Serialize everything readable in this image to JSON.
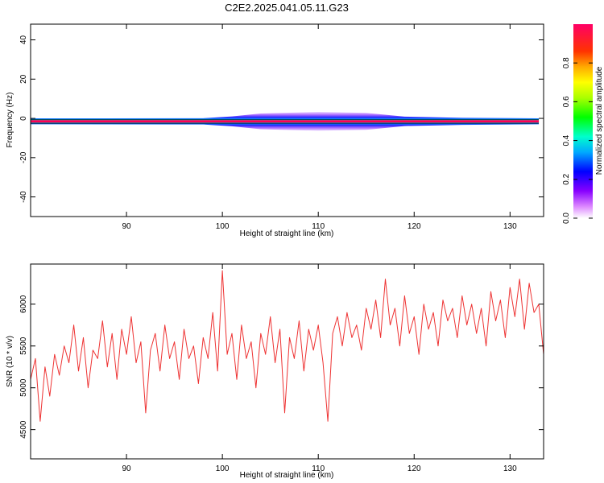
{
  "title": "C2E2.2025.041.05.11.G23",
  "colorbar": {
    "label": "Normalized spectral amplitude",
    "ticks": [
      "0.0",
      "0.2",
      "0.4",
      "0.6",
      "0.8"
    ],
    "tick_values": [
      0.0,
      0.2,
      0.4,
      0.6,
      0.8
    ],
    "range": [
      0,
      1
    ]
  },
  "chart_data": [
    {
      "type": "heatmap",
      "xlabel": "Height of straight line (km)",
      "ylabel": "Frequency (Hz)",
      "xlim": [
        80.0,
        133.5
      ],
      "ylim": [
        -50,
        48
      ],
      "xticks": [
        "90",
        "100",
        "110",
        "120",
        "130"
      ],
      "xtick_values": [
        90,
        100,
        110,
        120,
        130
      ],
      "yticks": [
        "40",
        "20",
        "0",
        "-20",
        "-40"
      ],
      "ytick_values": [
        40,
        20,
        0,
        -20,
        -40
      ],
      "band_center_hz": -1.5,
      "band_profile": [
        {
          "x": 80.0,
          "halfwidth": 1.5
        },
        {
          "x": 98.0,
          "halfwidth": 1.6
        },
        {
          "x": 101.0,
          "halfwidth": 2.5
        },
        {
          "x": 104.0,
          "halfwidth": 4.0
        },
        {
          "x": 110.0,
          "halfwidth": 4.8
        },
        {
          "x": 115.0,
          "halfwidth": 4.3
        },
        {
          "x": 119.0,
          "halfwidth": 2.4
        },
        {
          "x": 125.0,
          "halfwidth": 1.8
        },
        {
          "x": 133.0,
          "halfwidth": 1.5
        }
      ]
    },
    {
      "type": "line",
      "xlabel": "Height of straight line (km)",
      "ylabel": "SNR (10 * v/v)",
      "xlim": [
        80.0,
        133.5
      ],
      "ylim": [
        4150,
        6480
      ],
      "xticks": [
        "90",
        "100",
        "110",
        "120",
        "130"
      ],
      "xtick_values": [
        90,
        100,
        110,
        120,
        130
      ],
      "yticks": [
        "4500",
        "5000",
        "5500",
        "6000"
      ],
      "ytick_values": [
        4500,
        5000,
        5500,
        6000
      ],
      "series": [
        {
          "color": "#ee3333",
          "x": [
            80.0,
            80.5,
            81.0,
            81.5,
            82.0,
            82.5,
            83.0,
            83.5,
            84.0,
            84.5,
            85.0,
            85.5,
            86.0,
            86.5,
            87.0,
            87.5,
            88.0,
            88.5,
            89.0,
            89.5,
            90.0,
            90.5,
            91.0,
            91.5,
            92.0,
            92.5,
            93.0,
            93.5,
            94.0,
            94.5,
            95.0,
            95.5,
            96.0,
            96.5,
            97.0,
            97.5,
            98.0,
            98.5,
            99.0,
            99.5,
            100.0,
            100.5,
            101.0,
            101.5,
            102.0,
            102.5,
            103.0,
            103.5,
            104.0,
            104.5,
            105.0,
            105.5,
            106.0,
            106.5,
            107.0,
            107.5,
            108.0,
            108.5,
            109.0,
            109.5,
            110.0,
            110.5,
            111.0,
            111.5,
            112.0,
            112.5,
            113.0,
            113.5,
            114.0,
            114.5,
            115.0,
            115.5,
            116.0,
            116.5,
            117.0,
            117.5,
            118.0,
            118.5,
            119.0,
            119.5,
            120.0,
            120.5,
            121.0,
            121.5,
            122.0,
            122.5,
            123.0,
            123.5,
            124.0,
            124.5,
            125.0,
            125.5,
            126.0,
            126.5,
            127.0,
            127.5,
            128.0,
            128.5,
            129.0,
            129.5,
            130.0,
            130.5,
            131.0,
            131.5,
            132.0,
            132.5,
            133.0,
            133.5
          ],
          "values": [
            5100,
            5350,
            4600,
            5250,
            4900,
            5400,
            5150,
            5500,
            5300,
            5750,
            5200,
            5600,
            5000,
            5450,
            5350,
            5800,
            5250,
            5650,
            5100,
            5700,
            5400,
            5850,
            5300,
            5550,
            4700,
            5450,
            5650,
            5200,
            5750,
            5350,
            5550,
            5100,
            5700,
            5350,
            5500,
            5050,
            5600,
            5350,
            5900,
            5200,
            6400,
            5400,
            5650,
            5100,
            5750,
            5350,
            5550,
            5000,
            5650,
            5400,
            5850,
            5300,
            5700,
            4700,
            5600,
            5350,
            5800,
            5200,
            5700,
            5450,
            5750,
            5300,
            4600,
            5650,
            5850,
            5500,
            5900,
            5600,
            5750,
            5450,
            5950,
            5700,
            6050,
            5600,
            6300,
            5750,
            5950,
            5500,
            6100,
            5650,
            5850,
            5400,
            6000,
            5700,
            5900,
            5500,
            6050,
            5800,
            5950,
            5600,
            6100,
            5750,
            6000,
            5650,
            5950,
            5500,
            6150,
            5800,
            6050,
            5600,
            6200,
            5850,
            6300,
            5700,
            6250,
            5900,
            6000,
            5400
          ]
        }
      ]
    }
  ]
}
